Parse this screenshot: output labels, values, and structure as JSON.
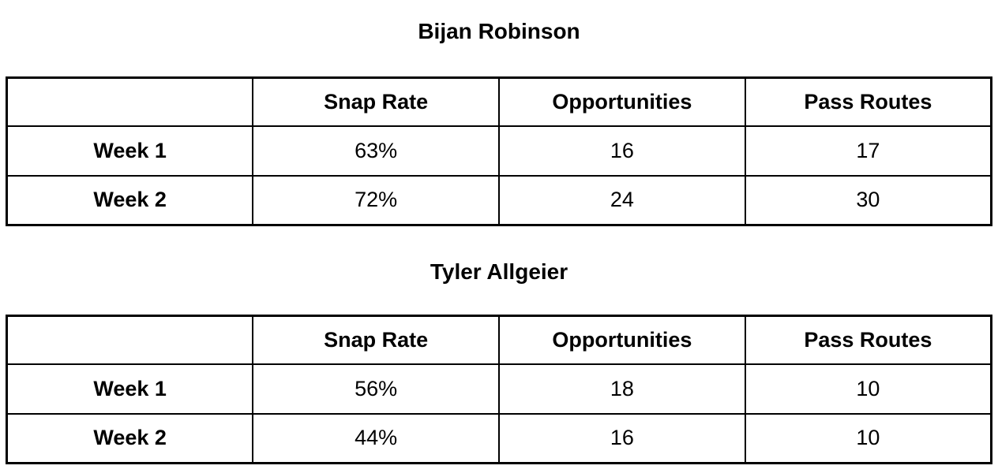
{
  "page": {
    "background_color": "#ffffff",
    "text_color": "#000000",
    "border_color": "#000000"
  },
  "tables": [
    {
      "title": "Bijan Robinson",
      "headers": [
        "",
        "Snap Rate",
        "Opportunities",
        "Pass Routes"
      ],
      "rows": [
        {
          "label": "Week 1",
          "values": [
            "63%",
            "16",
            "17"
          ]
        },
        {
          "label": "Week 2",
          "values": [
            "72%",
            "24",
            "30"
          ]
        }
      ]
    },
    {
      "title": "Tyler Allgeier",
      "headers": [
        "",
        "Snap Rate",
        "Opportunities",
        "Pass Routes"
      ],
      "rows": [
        {
          "label": "Week 1",
          "values": [
            "56%",
            "18",
            "10"
          ]
        },
        {
          "label": "Week 2",
          "values": [
            "44%",
            "16",
            "10"
          ]
        }
      ]
    }
  ]
}
